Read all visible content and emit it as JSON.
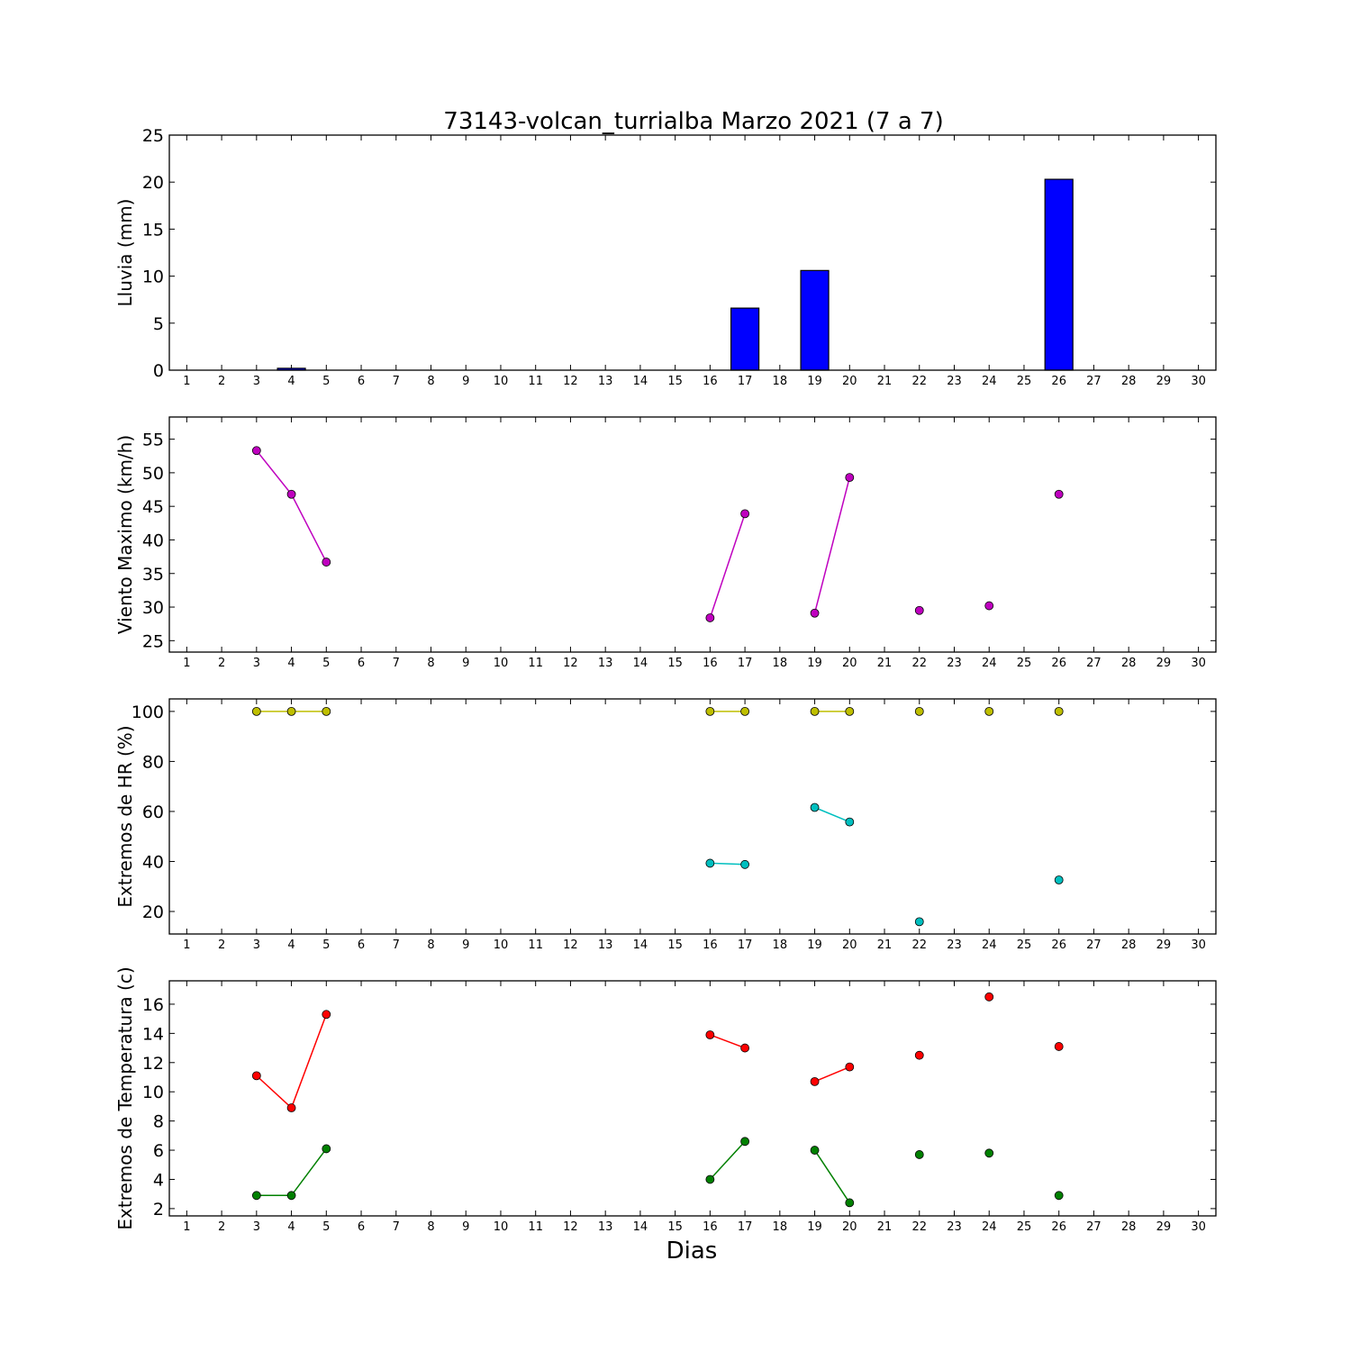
{
  "figure": {
    "title": "73143-volcan_turrialba Marzo 2021  (7 a 7)",
    "xlabel": "Dias"
  },
  "chart_data": [
    {
      "type": "bar",
      "ylabel": "Lluvia (mm)",
      "xlim": [
        0.5,
        30.5
      ],
      "ylim": [
        0,
        25
      ],
      "x_ticks": [
        1,
        2,
        3,
        4,
        5,
        6,
        7,
        8,
        9,
        10,
        11,
        12,
        13,
        14,
        15,
        16,
        17,
        18,
        19,
        20,
        21,
        22,
        23,
        24,
        25,
        26,
        27,
        28,
        29,
        30
      ],
      "y_ticks": [
        0,
        5,
        10,
        15,
        20,
        25
      ],
      "series": [
        {
          "color": "#0000ff",
          "x": [
            3,
            4,
            16,
            17,
            19,
            20,
            22,
            24,
            26
          ],
          "values": [
            0.0,
            0.2,
            0.0,
            6.6,
            10.6,
            0.0,
            0.0,
            0.0,
            20.3
          ]
        }
      ]
    },
    {
      "type": "line",
      "ylabel": "Viento Maximo (km/h)",
      "xlim": [
        0.5,
        30.5
      ],
      "ylim": [
        23.3,
        58.3
      ],
      "x_ticks": [
        1,
        2,
        3,
        4,
        5,
        6,
        7,
        8,
        9,
        10,
        11,
        12,
        13,
        14,
        15,
        16,
        17,
        18,
        19,
        20,
        21,
        22,
        23,
        24,
        25,
        26,
        27,
        28,
        29,
        30
      ],
      "y_ticks": [
        25,
        30,
        35,
        40,
        45,
        50,
        55
      ],
      "series": [
        {
          "color": "#bf00bf",
          "x": [
            3,
            4,
            5,
            6,
            7,
            8,
            9,
            10,
            11,
            12,
            13,
            14,
            15,
            16,
            17,
            18,
            19,
            20,
            21,
            22,
            23,
            24,
            25,
            26
          ],
          "values": [
            53.3,
            46.8,
            36.7,
            null,
            null,
            null,
            null,
            null,
            null,
            null,
            null,
            null,
            null,
            28.4,
            43.9,
            null,
            29.1,
            49.3,
            null,
            29.5,
            null,
            30.2,
            null,
            46.8
          ]
        }
      ]
    },
    {
      "type": "line",
      "ylabel": "Extremos de HR (%)",
      "xlim": [
        0.5,
        30.5
      ],
      "ylim": [
        11,
        105
      ],
      "x_ticks": [
        1,
        2,
        3,
        4,
        5,
        6,
        7,
        8,
        9,
        10,
        11,
        12,
        13,
        14,
        15,
        16,
        17,
        18,
        19,
        20,
        21,
        22,
        23,
        24,
        25,
        26,
        27,
        28,
        29,
        30
      ],
      "y_ticks": [
        20,
        40,
        60,
        80,
        100
      ],
      "series": [
        {
          "color": "#bfbf00",
          "x": [
            3,
            4,
            5,
            6,
            7,
            8,
            9,
            10,
            11,
            12,
            13,
            14,
            15,
            16,
            17,
            18,
            19,
            20,
            21,
            22,
            23,
            24,
            25,
            26
          ],
          "values": [
            100,
            100,
            100,
            null,
            null,
            null,
            null,
            null,
            null,
            null,
            null,
            null,
            null,
            100,
            100,
            null,
            100,
            100,
            null,
            100,
            null,
            100,
            null,
            100
          ]
        },
        {
          "color": "#00bfbf",
          "x": [
            16,
            17,
            18,
            19,
            20,
            21,
            22,
            23,
            24,
            25,
            26
          ],
          "values": [
            39.3,
            38.8,
            null,
            61.6,
            55.8,
            null,
            15.9,
            null,
            null,
            null,
            32.6
          ]
        }
      ]
    },
    {
      "type": "line",
      "ylabel": "Extremos de Temperatura (c)",
      "xlim": [
        0.5,
        30.5
      ],
      "ylim": [
        1.5,
        17.6
      ],
      "x_ticks": [
        1,
        2,
        3,
        4,
        5,
        6,
        7,
        8,
        9,
        10,
        11,
        12,
        13,
        14,
        15,
        16,
        17,
        18,
        19,
        20,
        21,
        22,
        23,
        24,
        25,
        26,
        27,
        28,
        29,
        30
      ],
      "y_ticks": [
        2,
        4,
        6,
        8,
        10,
        12,
        14,
        16
      ],
      "series": [
        {
          "color": "#ff0000",
          "x": [
            3,
            4,
            5,
            6,
            7,
            8,
            9,
            10,
            11,
            12,
            13,
            14,
            15,
            16,
            17,
            18,
            19,
            20,
            21,
            22,
            23,
            24,
            25,
            26
          ],
          "values": [
            11.1,
            8.9,
            15.3,
            null,
            null,
            null,
            null,
            null,
            null,
            null,
            null,
            null,
            null,
            13.9,
            13.0,
            null,
            10.7,
            11.7,
            null,
            12.5,
            null,
            16.5,
            null,
            13.1
          ]
        },
        {
          "color": "#008000",
          "x": [
            3,
            4,
            5,
            6,
            7,
            8,
            9,
            10,
            11,
            12,
            13,
            14,
            15,
            16,
            17,
            18,
            19,
            20,
            21,
            22,
            23,
            24,
            25,
            26
          ],
          "values": [
            2.9,
            2.9,
            6.1,
            null,
            null,
            null,
            null,
            null,
            null,
            null,
            null,
            null,
            null,
            4.0,
            6.6,
            null,
            6.0,
            2.4,
            null,
            5.7,
            null,
            5.8,
            null,
            2.9
          ]
        }
      ]
    }
  ]
}
